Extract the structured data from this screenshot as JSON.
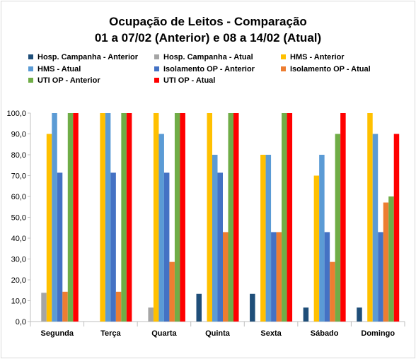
{
  "chart_data": {
    "type": "bar",
    "title": "Ocupação de Leitos - Comparação",
    "subtitle": "01 a 07/02 (Anterior) e 08 a 14/02 (Atual)",
    "xlabel": "",
    "ylabel": "",
    "ylim": [
      0,
      100
    ],
    "ytick_step": 10,
    "yticks": [
      "0,0",
      "10,0",
      "20,0",
      "30,0",
      "40,0",
      "50,0",
      "60,0",
      "70,0",
      "80,0",
      "90,0",
      "100,0"
    ],
    "grid": false,
    "legend_position": "top",
    "categories": [
      "Segunda",
      "Terça",
      "Quarta",
      "Quinta",
      "Sexta",
      "Sábado",
      "Domingo"
    ],
    "series": [
      {
        "name": "Hosp. Campanha - Anterior",
        "color": "#1f4e79",
        "values": [
          0,
          0,
          0,
          13.3,
          13.3,
          6.7,
          6.7
        ]
      },
      {
        "name": "Hosp. Campanha - Atual",
        "color": "#a5a5a5",
        "values": [
          13.8,
          0,
          6.7,
          0,
          0,
          0,
          0
        ]
      },
      {
        "name": "HMS - Anterior",
        "color": "#ffc000",
        "values": [
          90,
          100,
          100,
          100,
          80,
          70,
          100
        ]
      },
      {
        "name": "HMS - Atual",
        "color": "#5b9bd5",
        "values": [
          100,
          100,
          90,
          80,
          80,
          80,
          90
        ]
      },
      {
        "name": "Isolamento OP - Anterior",
        "color": "#4472c4",
        "values": [
          71.4,
          71.4,
          71.4,
          71.4,
          42.9,
          42.9,
          42.9
        ]
      },
      {
        "name": "Isolamento OP - Atual",
        "color": "#ed7d31",
        "values": [
          14.3,
          14.3,
          28.6,
          42.9,
          42.9,
          28.6,
          57.1
        ]
      },
      {
        "name": "UTI OP - Anterior",
        "color": "#70ad47",
        "values": [
          100,
          100,
          100,
          100,
          100,
          90,
          60
        ]
      },
      {
        "name": "UTI OP - Atual",
        "color": "#ff0000",
        "values": [
          100,
          100,
          100,
          100,
          100,
          100,
          90
        ]
      }
    ]
  }
}
